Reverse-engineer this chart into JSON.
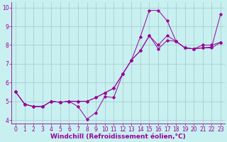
{
  "xlabel": "Windchill (Refroidissement éolien,°C)",
  "background_color": "#c8f0f0",
  "line_color": "#990099",
  "xlim": [
    -0.5,
    23.5
  ],
  "ylim": [
    3.8,
    10.3
  ],
  "xticks": [
    0,
    1,
    2,
    3,
    4,
    5,
    6,
    7,
    8,
    9,
    10,
    11,
    12,
    13,
    14,
    15,
    16,
    17,
    18,
    19,
    20,
    21,
    22,
    23
  ],
  "yticks": [
    4,
    5,
    6,
    7,
    8,
    9,
    10
  ],
  "line1_x": [
    0,
    1,
    2,
    3,
    4,
    5,
    6,
    7,
    8,
    9,
    10,
    11,
    12,
    13,
    14,
    15,
    16,
    17,
    18,
    19,
    20,
    21,
    22,
    23
  ],
  "line1_y": [
    5.5,
    4.85,
    4.72,
    4.72,
    5.0,
    4.95,
    5.0,
    4.72,
    4.05,
    4.4,
    5.25,
    5.2,
    6.45,
    7.2,
    8.45,
    9.85,
    9.85,
    9.3,
    8.2,
    7.85,
    7.8,
    8.0,
    8.0,
    8.15
  ],
  "line2_x": [
    0,
    1,
    2,
    3,
    4,
    5,
    6,
    7,
    8,
    9,
    10,
    11,
    12,
    13,
    14,
    15,
    16,
    17,
    18,
    19,
    20,
    21,
    22,
    23
  ],
  "line2_y": [
    5.5,
    4.85,
    4.72,
    4.72,
    5.0,
    4.95,
    5.0,
    5.0,
    5.0,
    5.2,
    5.45,
    5.7,
    6.45,
    7.2,
    7.7,
    8.5,
    7.8,
    8.25,
    8.2,
    7.85,
    7.8,
    7.85,
    7.9,
    9.65
  ],
  "line3_x": [
    0,
    1,
    2,
    3,
    4,
    5,
    6,
    7,
    8,
    9,
    10,
    11,
    12,
    13,
    14,
    15,
    16,
    17,
    18,
    19,
    20,
    21,
    22,
    23
  ],
  "line3_y": [
    5.5,
    4.85,
    4.72,
    4.72,
    5.0,
    4.95,
    5.0,
    5.0,
    5.0,
    5.2,
    5.45,
    5.7,
    6.45,
    7.2,
    7.7,
    8.5,
    8.0,
    8.5,
    8.2,
    7.85,
    7.8,
    7.85,
    7.85,
    8.15
  ],
  "grid_color": "#a0c8c8",
  "tick_fontsize": 5.5,
  "xlabel_fontsize": 6.5
}
